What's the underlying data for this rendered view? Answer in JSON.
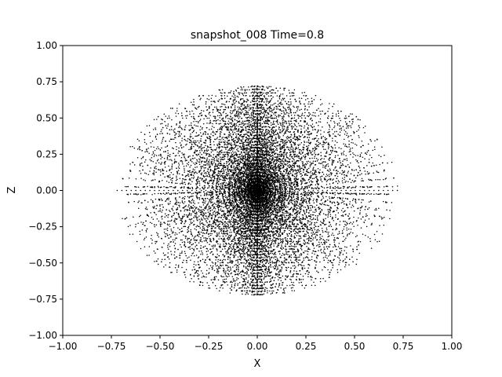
{
  "figure": {
    "title": "snapshot_008  Time=0.8",
    "xlabel": "X",
    "ylabel": "Z"
  },
  "chart_data": {
    "type": "scatter",
    "title": "snapshot_008  Time=0.8",
    "xlabel": "X",
    "ylabel": "Z",
    "xlim": [
      -1.0,
      1.0
    ],
    "ylim": [
      -1.0,
      1.0
    ],
    "xticks": [
      "−1.00",
      "−0.75",
      "−0.50",
      "−0.25",
      "0.00",
      "0.25",
      "0.50",
      "0.75",
      "1.00"
    ],
    "yticks": [
      "−1.00",
      "−0.75",
      "−0.50",
      "−0.25",
      "0.00",
      "0.25",
      "0.50",
      "0.75",
      "1.00"
    ],
    "grid": false,
    "legend": false,
    "marker_color": "#000000",
    "series": [
      {
        "distribution": "projected particle sphere (x-z slice)",
        "center": [
          0.0,
          0.0
        ],
        "radius": 0.72,
        "marker": "point"
      }
    ]
  },
  "colors": {
    "background": "#ffffff",
    "axes": "#000000",
    "points": "#000000"
  }
}
